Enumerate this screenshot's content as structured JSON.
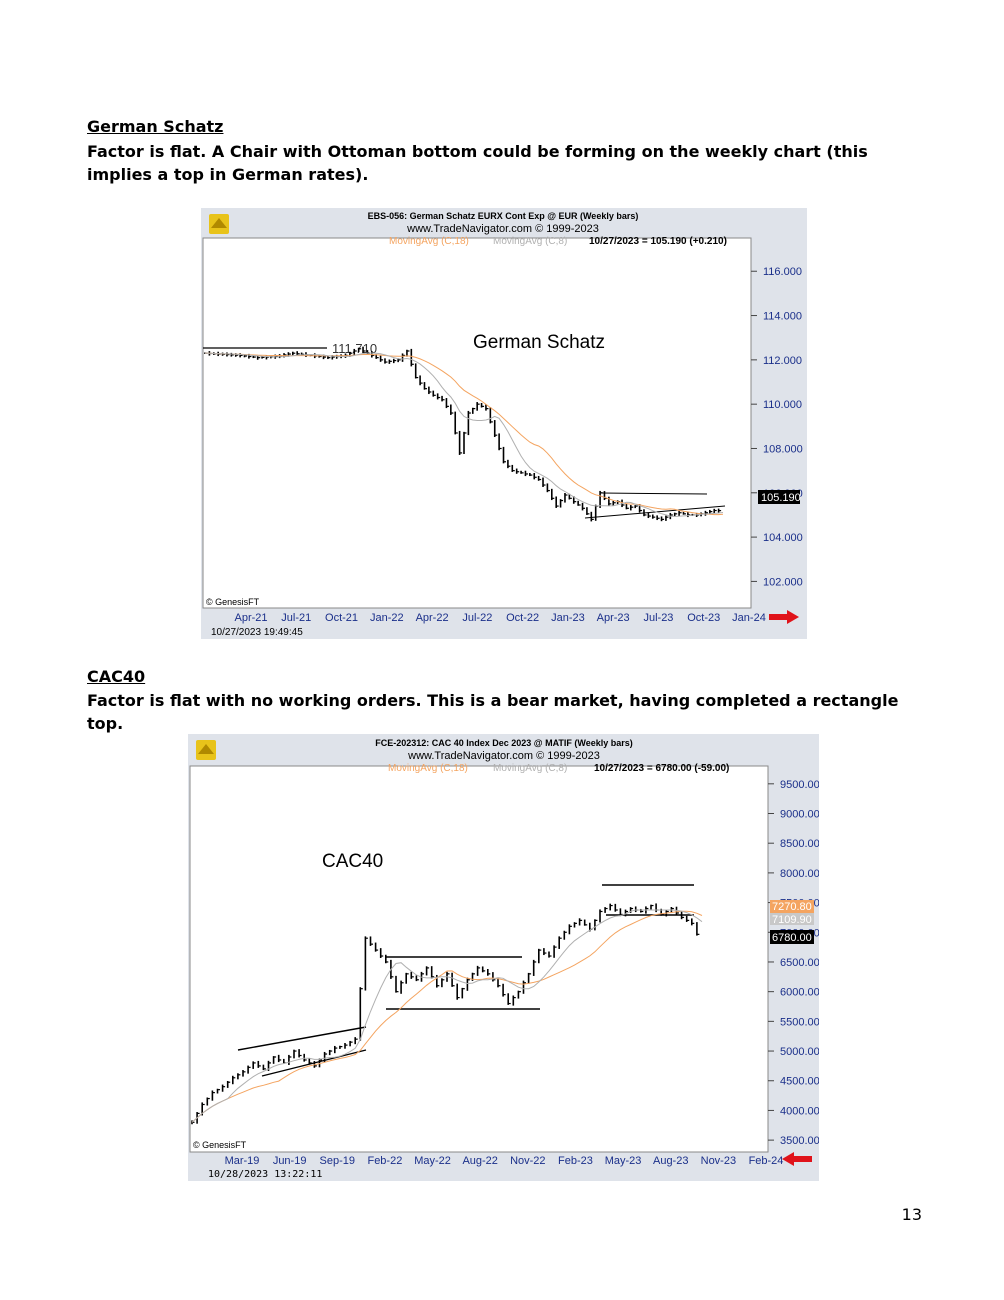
{
  "section1": {
    "title": "German Schatz",
    "paragraph": "Factor is flat. A Chair with Ottoman bottom could be forming on the weekly chart (this implies a top in German rates)."
  },
  "section2": {
    "title": "CAC40",
    "paragraph": "Factor is flat with no working orders. This is a bear market, having completed a rectangle top."
  },
  "page_number": "13",
  "chart_data": [
    {
      "type": "bar",
      "header_line1": "EBS-056:  German Schatz EURX Cont Exp @ EUR  (Weekly bars)",
      "header_line2": "www.TradeNavigator.com © 1999-2023",
      "ma1_label": "MovingAvg (C,18)",
      "ma2_label": "MovingAvg (C,8)",
      "quote": "10/27/2023 = 105.190 (+0.210)",
      "annotation_title": "German Schatz",
      "level_label": "111.710",
      "last_price_label": "105.190",
      "copyright": "© GenesisFT",
      "timestamp": "10/27/2023 19:49:45",
      "x_tick_labels": [
        "Apr-21",
        "Jul-21",
        "Oct-21",
        "Jan-22",
        "Apr-22",
        "Jul-22",
        "Oct-22",
        "Jan-23",
        "Apr-23",
        "Jul-23",
        "Oct-23",
        "Jan-24"
      ],
      "y_tick_labels": [
        "116.000",
        "114.000",
        "112.000",
        "110.000",
        "108.000",
        "106.000",
        "104.000",
        "102.000"
      ],
      "ylim": [
        100.8,
        117.5
      ],
      "ma_color_18": "#f4a460",
      "ma_color_8": "#b0b0b0",
      "series": [
        {
          "week": 0,
          "close": 112.3
        },
        {
          "week": 4,
          "close": 112.25
        },
        {
          "week": 8,
          "close": 112.2
        },
        {
          "week": 12,
          "close": 112.1
        },
        {
          "week": 16,
          "close": 112.15
        },
        {
          "week": 20,
          "close": 112.3
        },
        {
          "week": 24,
          "close": 112.2
        },
        {
          "week": 28,
          "close": 112.1
        },
        {
          "week": 32,
          "close": 112.2
        },
        {
          "week": 35,
          "close": 112.5
        },
        {
          "week": 38,
          "close": 112.2
        },
        {
          "week": 41,
          "close": 111.9
        },
        {
          "week": 44,
          "close": 112.0
        },
        {
          "week": 46,
          "close": 112.4
        },
        {
          "week": 48,
          "close": 111.2
        },
        {
          "week": 50,
          "close": 110.7
        },
        {
          "week": 52,
          "close": 110.4
        },
        {
          "week": 54,
          "close": 110.2
        },
        {
          "week": 56,
          "close": 109.6
        },
        {
          "week": 58,
          "close": 107.8
        },
        {
          "week": 60,
          "close": 109.6
        },
        {
          "week": 62,
          "close": 110.0
        },
        {
          "week": 64,
          "close": 109.8
        },
        {
          "week": 66,
          "close": 108.6
        },
        {
          "week": 68,
          "close": 107.4
        },
        {
          "week": 70,
          "close": 107.0
        },
        {
          "week": 72,
          "close": 106.9
        },
        {
          "week": 74,
          "close": 106.8
        },
        {
          "week": 76,
          "close": 106.6
        },
        {
          "week": 78,
          "close": 106.1
        },
        {
          "week": 80,
          "close": 105.4
        },
        {
          "week": 82,
          "close": 105.9
        },
        {
          "week": 84,
          "close": 105.6
        },
        {
          "week": 86,
          "close": 105.3
        },
        {
          "week": 88,
          "close": 104.8
        },
        {
          "week": 90,
          "close": 106.0
        },
        {
          "week": 92,
          "close": 105.5
        },
        {
          "week": 94,
          "close": 105.6
        },
        {
          "week": 96,
          "close": 105.3
        },
        {
          "week": 98,
          "close": 105.4
        },
        {
          "week": 100,
          "close": 105.0
        },
        {
          "week": 102,
          "close": 104.9
        },
        {
          "week": 104,
          "close": 104.8
        },
        {
          "week": 106,
          "close": 105.0
        },
        {
          "week": 108,
          "close": 105.1
        },
        {
          "week": 110,
          "close": 105.0
        },
        {
          "week": 112,
          "close": 105.0
        },
        {
          "week": 114,
          "close": 105.1
        },
        {
          "week": 116,
          "close": 105.2
        },
        {
          "week": 118,
          "close": 105.19
        }
      ]
    },
    {
      "type": "bar",
      "header_line1": "FCE-202312:  CAC 40 Index Dec 2023 @ MATIF  (Weekly bars)",
      "header_line2": "www.TradeNavigator.com © 1999-2023",
      "ma1_label": "MovingAvg (C,18)",
      "ma2_label": "MovingAvg (C,8)",
      "quote": "10/27/2023 = 6780.00 (-59.00)",
      "annotation_title": "CAC40",
      "last_price_label": "6780.00",
      "ma18_label": "7270.80",
      "ma8_label": "7109.90",
      "copyright": "© GenesisFT",
      "timestamp": "10/28/2023 13:22:11",
      "x_tick_labels": [
        "Mar-19",
        "Jun-19",
        "Sep-19",
        "Feb-22",
        "May-22",
        "Aug-22",
        "Nov-22",
        "Feb-23",
        "May-23",
        "Aug-23",
        "Nov-23",
        "Feb-24"
      ],
      "y_tick_labels": [
        "9500.00",
        "9000.00",
        "8500.00",
        "8000.00",
        "7500.00",
        "7000.00",
        "6500.00",
        "6000.00",
        "5500.00",
        "5000.00",
        "4500.00",
        "4000.00",
        "3500.00"
      ],
      "ylim": [
        3300,
        9800
      ],
      "ma_color_18": "#f4a460",
      "ma_color_8": "#b0b0b0",
      "series": [
        {
          "week": 0,
          "close": 3800
        },
        {
          "week": 2,
          "close": 4100
        },
        {
          "week": 4,
          "close": 4300
        },
        {
          "week": 6,
          "close": 4400
        },
        {
          "week": 8,
          "close": 4550
        },
        {
          "week": 10,
          "close": 4650
        },
        {
          "week": 12,
          "close": 4800
        },
        {
          "week": 14,
          "close": 4700
        },
        {
          "week": 16,
          "close": 4900
        },
        {
          "week": 18,
          "close": 4800
        },
        {
          "week": 20,
          "close": 5000
        },
        {
          "week": 22,
          "close": 4850
        },
        {
          "week": 24,
          "close": 4750
        },
        {
          "week": 26,
          "close": 4950
        },
        {
          "week": 28,
          "close": 5050
        },
        {
          "week": 30,
          "close": 5100
        },
        {
          "week": 32,
          "close": 5200
        },
        {
          "week": 34,
          "close": 6900
        },
        {
          "week": 36,
          "close": 6700
        },
        {
          "week": 38,
          "close": 6500
        },
        {
          "week": 40,
          "close": 6000
        },
        {
          "week": 42,
          "close": 6300
        },
        {
          "week": 44,
          "close": 6200
        },
        {
          "week": 46,
          "close": 6400
        },
        {
          "week": 48,
          "close": 6100
        },
        {
          "week": 50,
          "close": 6300
        },
        {
          "week": 52,
          "close": 5900
        },
        {
          "week": 54,
          "close": 6200
        },
        {
          "week": 56,
          "close": 6400
        },
        {
          "week": 58,
          "close": 6300
        },
        {
          "week": 60,
          "close": 6100
        },
        {
          "week": 62,
          "close": 5800
        },
        {
          "week": 64,
          "close": 6000
        },
        {
          "week": 66,
          "close": 6300
        },
        {
          "week": 68,
          "close": 6700
        },
        {
          "week": 70,
          "close": 6600
        },
        {
          "week": 72,
          "close": 6900
        },
        {
          "week": 74,
          "close": 7100
        },
        {
          "week": 76,
          "close": 7200
        },
        {
          "week": 78,
          "close": 7050
        },
        {
          "week": 80,
          "close": 7350
        },
        {
          "week": 82,
          "close": 7450
        },
        {
          "week": 84,
          "close": 7300
        },
        {
          "week": 86,
          "close": 7400
        },
        {
          "week": 88,
          "close": 7350
        },
        {
          "week": 90,
          "close": 7450
        },
        {
          "week": 92,
          "close": 7300
        },
        {
          "week": 94,
          "close": 7400
        },
        {
          "week": 96,
          "close": 7250
        },
        {
          "week": 98,
          "close": 7150
        },
        {
          "week": 100,
          "close": 6780
        }
      ]
    }
  ]
}
